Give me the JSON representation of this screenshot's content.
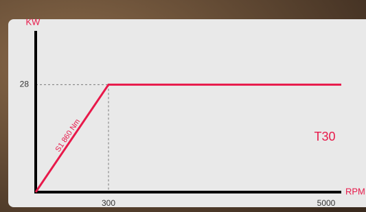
{
  "chart_data": {
    "type": "line",
    "x_label": "RPM",
    "y_label": "KW",
    "x": [
      0,
      300,
      5350
    ],
    "values": [
      0,
      28,
      28
    ],
    "color": "#e8194a",
    "annotations": [
      "S1 860 Nm",
      "T30"
    ],
    "xlim": [
      0,
      5350
    ],
    "xticks": [
      300,
      5000
    ],
    "ylim": [
      0,
      42
    ],
    "yticks": [
      28
    ]
  }
}
